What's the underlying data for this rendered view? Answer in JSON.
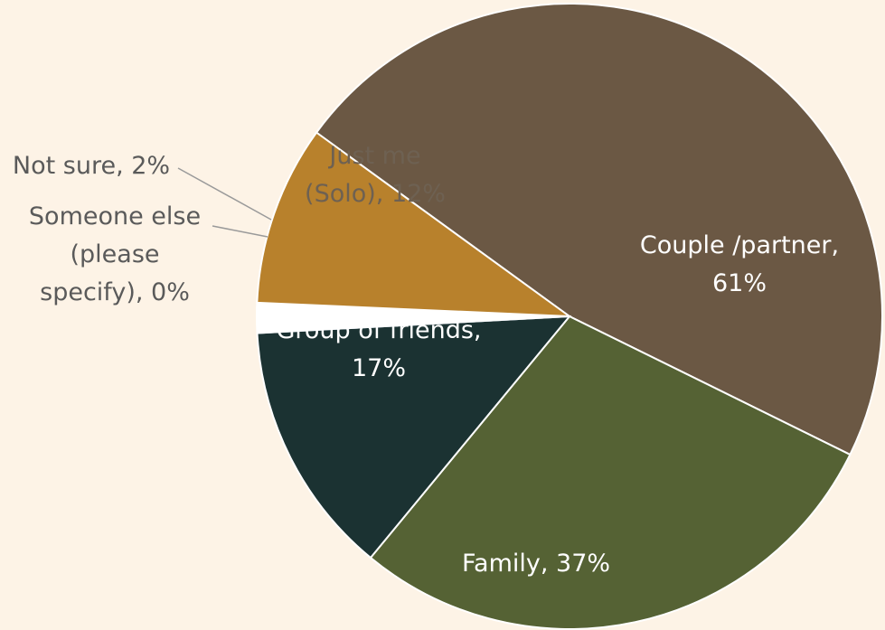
{
  "chart_data": {
    "type": "pie",
    "values": [
      61,
      37,
      17,
      0,
      2,
      12
    ],
    "labels": [
      [
        "Couple /partner,",
        "61%"
      ],
      [
        "Family, 37%"
      ],
      [
        "Group of friends,",
        "17%"
      ],
      [
        "Someone else",
        "(please",
        "specify), 0%"
      ],
      [
        "Not sure, 2%"
      ],
      [
        "Just me",
        "(Solo), 12%"
      ]
    ],
    "colors": [
      "#6b5844",
      "#556234",
      "#1b3232",
      "#4a6d8c",
      "#ffffff",
      "#b8812c"
    ]
  }
}
